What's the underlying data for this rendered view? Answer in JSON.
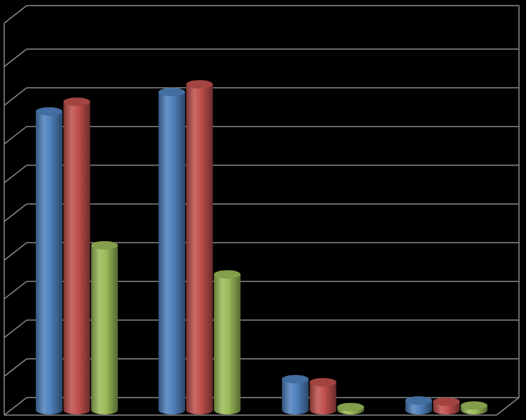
{
  "chart_data": {
    "type": "bar",
    "style": "3d-cylinder",
    "title": "",
    "xlabel": "",
    "ylabel": "",
    "grid": true,
    "legend": "none",
    "ylim": [
      0,
      9
    ],
    "categories": [
      "",
      "",
      "",
      ""
    ],
    "series": [
      {
        "color": "#4f81bd",
        "values": [
          7.7,
          8.2,
          0.8,
          0.25
        ]
      },
      {
        "color": "#c0504d",
        "values": [
          7.95,
          8.4,
          0.72,
          0.22
        ]
      },
      {
        "color": "#9bbb59",
        "values": [
          4.25,
          3.5,
          0.08,
          0.12
        ]
      }
    ]
  },
  "colors": {
    "background": "#000000",
    "grid": "#8c8c8c"
  }
}
